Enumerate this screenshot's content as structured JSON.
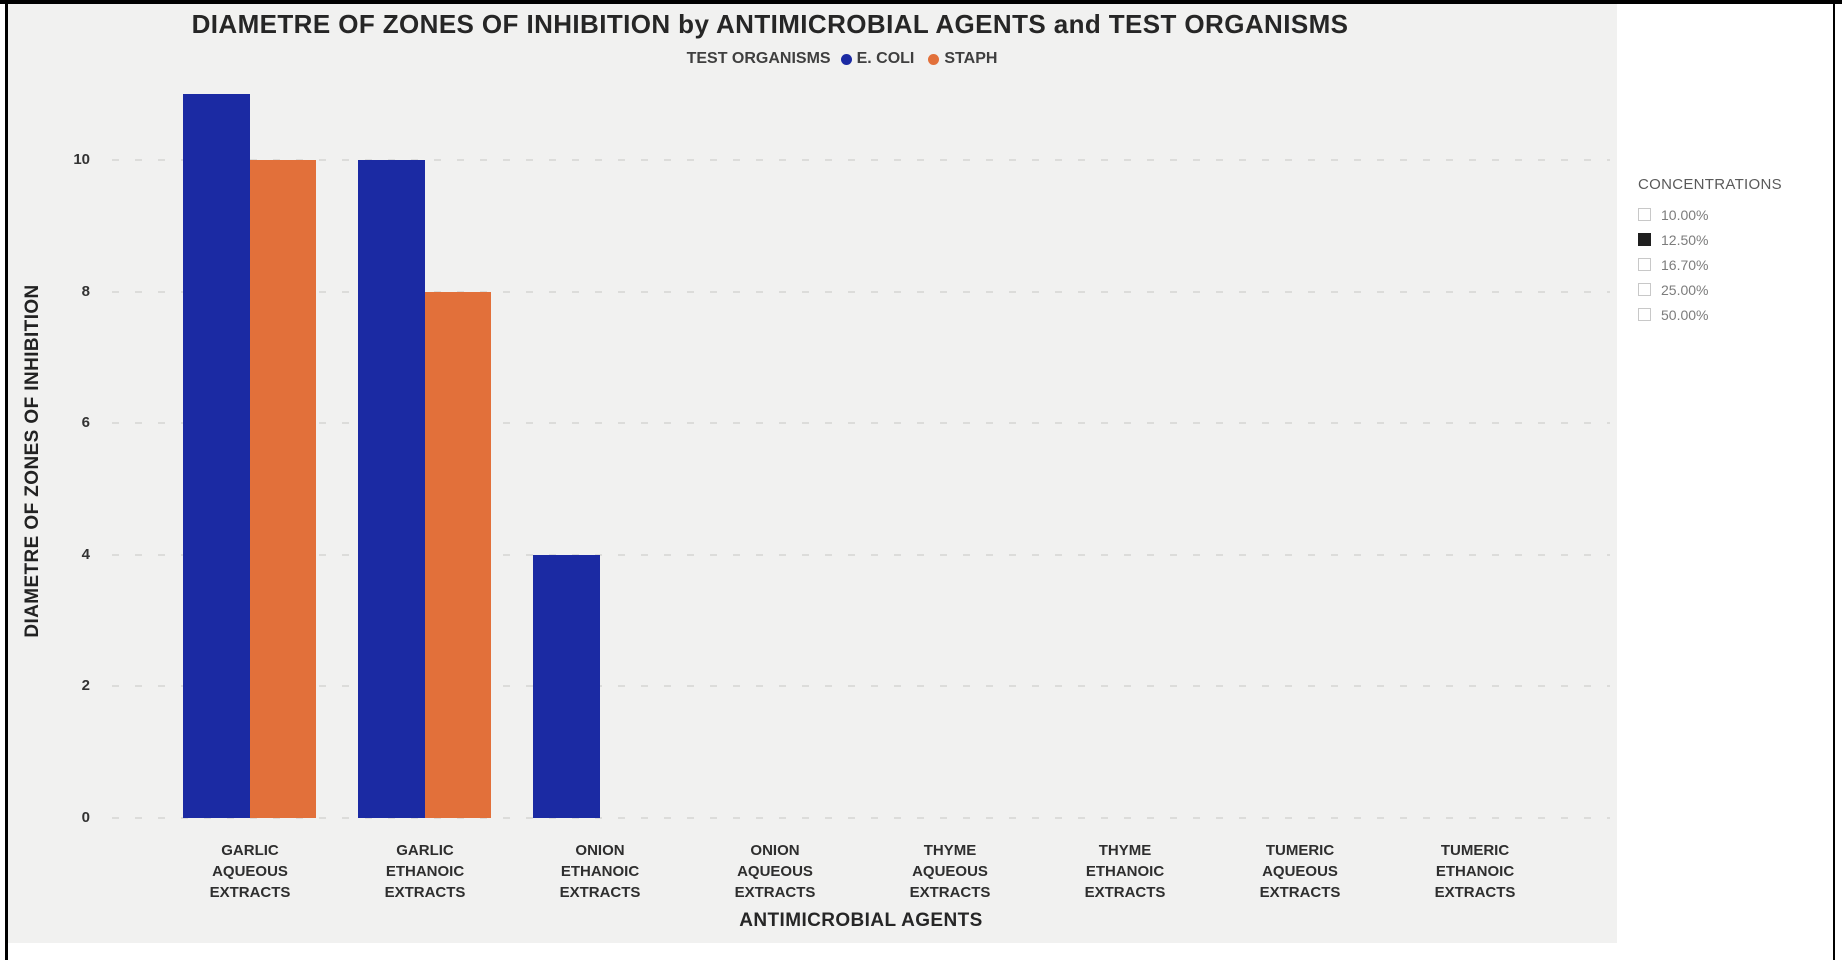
{
  "chart_data": {
    "type": "bar",
    "title": "DIAMETRE OF ZONES OF INHIBITION by ANTIMICROBIAL AGENTS and TEST ORGANISMS",
    "legend_title": "TEST ORGANISMS",
    "xlabel": "ANTIMICROBIAL AGENTS",
    "ylabel": "DIAMETRE OF ZONES OF INHIBITION",
    "categories": [
      "GARLIC AQUEOUS EXTRACTS",
      "GARLIC ETHANOIC EXTRACTS",
      "ONION ETHANOIC EXTRACTS",
      "ONION AQUEOUS EXTRACTS",
      "THYME AQUEOUS EXTRACTS",
      "THYME ETHANOIC EXTRACTS",
      "TUMERIC AQUEOUS EXTRACTS",
      "TUMERIC ETHANOIC EXTRACTS"
    ],
    "series": [
      {
        "name": "E. COLI",
        "color": "#1B2AA3",
        "values": [
          11,
          10,
          4,
          0,
          0,
          0,
          0,
          0
        ]
      },
      {
        "name": "STAPH",
        "color": "#E2703A",
        "values": [
          10,
          8,
          0,
          0,
          0,
          0,
          0,
          0
        ]
      }
    ],
    "ylim": [
      0,
      11
    ],
    "yticks": [
      0,
      2,
      4,
      6,
      8,
      10
    ],
    "grid": "dashed-horizontal",
    "legend_position": "top-center",
    "plot_background": "#F1F1F0"
  },
  "slicer": {
    "title": "CONCENTRATIONS",
    "options": [
      {
        "label": "10.00%",
        "selected": false
      },
      {
        "label": "12.50%",
        "selected": true
      },
      {
        "label": "16.70%",
        "selected": false
      },
      {
        "label": "25.00%",
        "selected": false
      },
      {
        "label": "50.00%",
        "selected": false
      }
    ]
  }
}
